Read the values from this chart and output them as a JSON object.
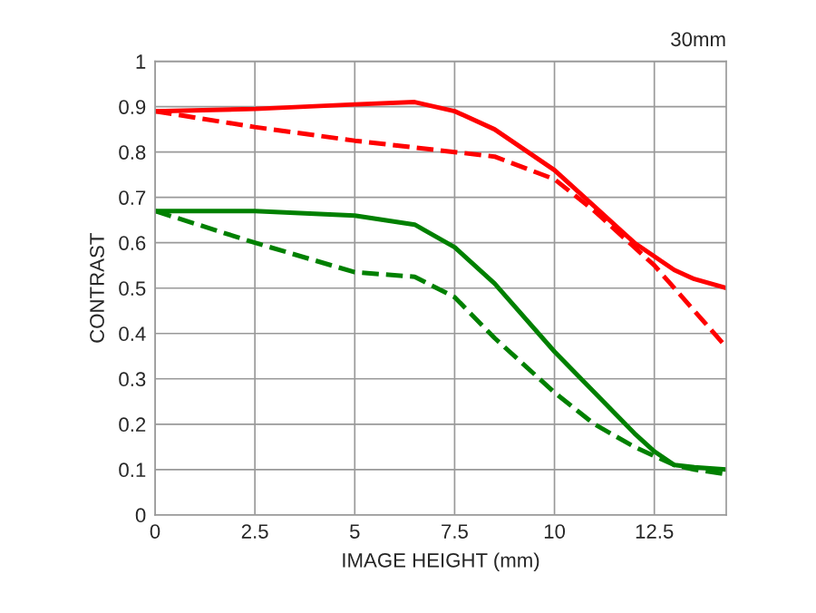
{
  "chart_data": {
    "type": "line",
    "title": "30mm",
    "xlabel": "IMAGE HEIGHT (mm)",
    "ylabel": "CONTRAST",
    "x": [
      0,
      2.5,
      5,
      6.5,
      7.5,
      8.5,
      10,
      11,
      12,
      12.5,
      13,
      13.5,
      14.3
    ],
    "series": [
      {
        "color": "#ff0000",
        "line_style": "solid",
        "values": [
          0.89,
          0.895,
          0.905,
          0.91,
          0.89,
          0.85,
          0.76,
          0.68,
          0.6,
          0.57,
          0.54,
          0.52,
          0.5
        ]
      },
      {
        "color": "#ff0000",
        "line_style": "dashed",
        "values": [
          0.89,
          0.855,
          0.825,
          0.81,
          0.8,
          0.79,
          0.74,
          0.67,
          0.59,
          0.55,
          0.5,
          0.45,
          0.37
        ]
      },
      {
        "color": "#008000",
        "line_style": "solid",
        "values": [
          0.67,
          0.67,
          0.66,
          0.64,
          0.59,
          0.51,
          0.36,
          0.27,
          0.18,
          0.14,
          0.11,
          0.105,
          0.1
        ]
      },
      {
        "color": "#008000",
        "line_style": "dashed",
        "values": [
          0.67,
          0.6,
          0.535,
          0.525,
          0.48,
          0.39,
          0.27,
          0.2,
          0.15,
          0.13,
          0.11,
          0.1,
          0.09
        ]
      }
    ],
    "xlim": [
      0,
      14.3
    ],
    "ylim": [
      0,
      1
    ],
    "xticks": [
      0,
      2.5,
      5,
      7.5,
      10,
      12.5
    ],
    "yticks": [
      0,
      0.1,
      0.2,
      0.3,
      0.4,
      0.5,
      0.6,
      0.7,
      0.8,
      0.9,
      1
    ],
    "grid": true,
    "legend": false
  }
}
